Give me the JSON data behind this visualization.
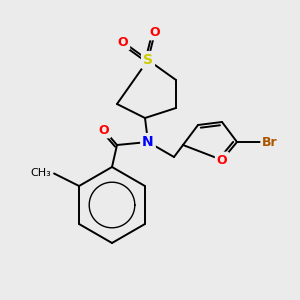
{
  "background_color": "#ebebeb",
  "fig_size": [
    3.0,
    3.0
  ],
  "dpi": 100,
  "bond_lw": 1.4,
  "font_size": 9,
  "colors": {
    "S": "#cccc00",
    "O": "#ff0000",
    "N": "#0000ff",
    "Br": "#aa5500",
    "C": "#000000"
  }
}
